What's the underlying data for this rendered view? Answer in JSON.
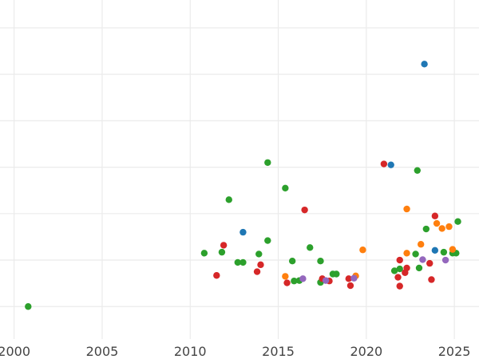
{
  "chart_data": {
    "type": "scatter",
    "title": "",
    "xlabel": "",
    "ylabel": "",
    "grid": true,
    "xlim": [
      1999.2,
      2026.4
    ],
    "ylim": [
      -0.7,
      6.6
    ],
    "x_ticks": [
      2000,
      2005,
      2010,
      2015,
      2020,
      2025
    ],
    "x_tick_labels": [
      "2000",
      "2005",
      "2010",
      "2015",
      "2020",
      "2025"
    ],
    "y_gridlines": [
      0,
      1,
      2,
      3,
      4,
      5,
      6
    ],
    "series": [
      {
        "color": "#2ca02c",
        "points": [
          [
            2000.8,
            0.0
          ],
          [
            2010.8,
            1.15
          ],
          [
            2011.8,
            1.17
          ],
          [
            2012.2,
            2.3
          ],
          [
            2012.7,
            0.95
          ],
          [
            2013.0,
            0.95
          ],
          [
            2013.9,
            1.13
          ],
          [
            2014.4,
            1.42
          ],
          [
            2014.4,
            3.1
          ],
          [
            2015.4,
            2.55
          ],
          [
            2015.8,
            0.98
          ],
          [
            2015.9,
            0.55
          ],
          [
            2016.2,
            0.56
          ],
          [
            2016.8,
            1.27
          ],
          [
            2017.4,
            0.52
          ],
          [
            2017.4,
            0.98
          ],
          [
            2018.1,
            0.7
          ],
          [
            2018.3,
            0.7
          ],
          [
            2021.6,
            0.77
          ],
          [
            2021.9,
            0.81
          ],
          [
            2022.8,
            1.13
          ],
          [
            2022.9,
            2.93
          ],
          [
            2023.0,
            0.83
          ],
          [
            2023.4,
            1.67
          ],
          [
            2024.4,
            1.17
          ],
          [
            2024.9,
            1.15
          ],
          [
            2025.1,
            1.15
          ],
          [
            2025.2,
            1.83
          ]
        ]
      },
      {
        "color": "#d62728",
        "points": [
          [
            2011.5,
            0.67
          ],
          [
            2011.9,
            1.32
          ],
          [
            2013.8,
            0.75
          ],
          [
            2014.0,
            0.9
          ],
          [
            2015.5,
            0.51
          ],
          [
            2016.5,
            2.08
          ],
          [
            2017.5,
            0.6
          ],
          [
            2017.9,
            0.55
          ],
          [
            2019.0,
            0.6
          ],
          [
            2019.1,
            0.45
          ],
          [
            2021.0,
            3.07
          ],
          [
            2021.8,
            0.63
          ],
          [
            2021.9,
            0.44
          ],
          [
            2021.9,
            1.0
          ],
          [
            2022.2,
            0.73
          ],
          [
            2022.3,
            0.83
          ],
          [
            2023.6,
            0.93
          ],
          [
            2023.7,
            0.58
          ],
          [
            2023.9,
            1.95
          ]
        ]
      },
      {
        "color": "#1f77b4",
        "points": [
          [
            2013.0,
            1.6
          ],
          [
            2021.4,
            3.05
          ],
          [
            2023.3,
            5.22
          ],
          [
            2023.9,
            1.21
          ]
        ]
      },
      {
        "color": "#ff7f0e",
        "points": [
          [
            2015.4,
            0.65
          ],
          [
            2019.4,
            0.66
          ],
          [
            2019.8,
            1.22
          ],
          [
            2022.3,
            1.15
          ],
          [
            2022.3,
            2.1
          ],
          [
            2023.1,
            1.34
          ],
          [
            2024.0,
            1.79
          ],
          [
            2024.3,
            1.68
          ],
          [
            2024.7,
            1.72
          ],
          [
            2024.9,
            1.23
          ]
        ]
      },
      {
        "color": "#9467bd",
        "points": [
          [
            2016.4,
            0.6
          ],
          [
            2017.7,
            0.56
          ],
          [
            2019.3,
            0.61
          ],
          [
            2023.2,
            1.01
          ],
          [
            2024.5,
            1.0
          ]
        ]
      }
    ]
  }
}
